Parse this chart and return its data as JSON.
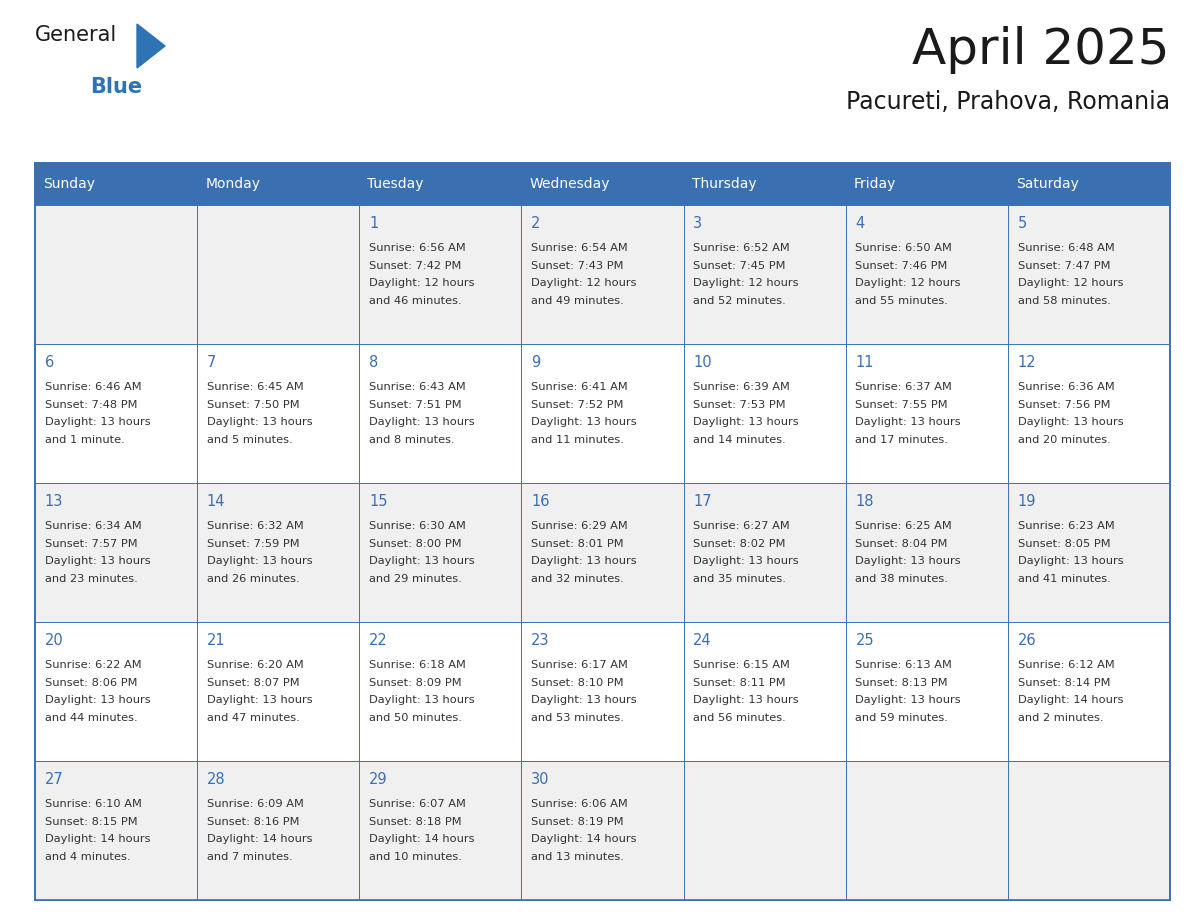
{
  "title": "April 2025",
  "subtitle": "Pacureti, Prahova, Romania",
  "header_bg_color": "#3A70B2",
  "header_text_color": "#FFFFFF",
  "cell_bg_even": "#F0F0F0",
  "cell_bg_odd": "#FFFFFF",
  "border_color": "#3A70B2",
  "day_num_color": "#3A70B2",
  "text_color": "#333333",
  "day_headers": [
    "Sunday",
    "Monday",
    "Tuesday",
    "Wednesday",
    "Thursday",
    "Friday",
    "Saturday"
  ],
  "days_data": [
    {
      "day": 1,
      "col": 2,
      "row": 0,
      "sunrise": "6:56 AM",
      "sunset": "7:42 PM",
      "daylight_h": "12 hours",
      "daylight_m": "46 minutes."
    },
    {
      "day": 2,
      "col": 3,
      "row": 0,
      "sunrise": "6:54 AM",
      "sunset": "7:43 PM",
      "daylight_h": "12 hours",
      "daylight_m": "49 minutes."
    },
    {
      "day": 3,
      "col": 4,
      "row": 0,
      "sunrise": "6:52 AM",
      "sunset": "7:45 PM",
      "daylight_h": "12 hours",
      "daylight_m": "52 minutes."
    },
    {
      "day": 4,
      "col": 5,
      "row": 0,
      "sunrise": "6:50 AM",
      "sunset": "7:46 PM",
      "daylight_h": "12 hours",
      "daylight_m": "55 minutes."
    },
    {
      "day": 5,
      "col": 6,
      "row": 0,
      "sunrise": "6:48 AM",
      "sunset": "7:47 PM",
      "daylight_h": "12 hours",
      "daylight_m": "58 minutes."
    },
    {
      "day": 6,
      "col": 0,
      "row": 1,
      "sunrise": "6:46 AM",
      "sunset": "7:48 PM",
      "daylight_h": "13 hours",
      "daylight_m": "1 minute."
    },
    {
      "day": 7,
      "col": 1,
      "row": 1,
      "sunrise": "6:45 AM",
      "sunset": "7:50 PM",
      "daylight_h": "13 hours",
      "daylight_m": "5 minutes."
    },
    {
      "day": 8,
      "col": 2,
      "row": 1,
      "sunrise": "6:43 AM",
      "sunset": "7:51 PM",
      "daylight_h": "13 hours",
      "daylight_m": "8 minutes."
    },
    {
      "day": 9,
      "col": 3,
      "row": 1,
      "sunrise": "6:41 AM",
      "sunset": "7:52 PM",
      "daylight_h": "13 hours",
      "daylight_m": "11 minutes."
    },
    {
      "day": 10,
      "col": 4,
      "row": 1,
      "sunrise": "6:39 AM",
      "sunset": "7:53 PM",
      "daylight_h": "13 hours",
      "daylight_m": "14 minutes."
    },
    {
      "day": 11,
      "col": 5,
      "row": 1,
      "sunrise": "6:37 AM",
      "sunset": "7:55 PM",
      "daylight_h": "13 hours",
      "daylight_m": "17 minutes."
    },
    {
      "day": 12,
      "col": 6,
      "row": 1,
      "sunrise": "6:36 AM",
      "sunset": "7:56 PM",
      "daylight_h": "13 hours",
      "daylight_m": "20 minutes."
    },
    {
      "day": 13,
      "col": 0,
      "row": 2,
      "sunrise": "6:34 AM",
      "sunset": "7:57 PM",
      "daylight_h": "13 hours",
      "daylight_m": "23 minutes."
    },
    {
      "day": 14,
      "col": 1,
      "row": 2,
      "sunrise": "6:32 AM",
      "sunset": "7:59 PM",
      "daylight_h": "13 hours",
      "daylight_m": "26 minutes."
    },
    {
      "day": 15,
      "col": 2,
      "row": 2,
      "sunrise": "6:30 AM",
      "sunset": "8:00 PM",
      "daylight_h": "13 hours",
      "daylight_m": "29 minutes."
    },
    {
      "day": 16,
      "col": 3,
      "row": 2,
      "sunrise": "6:29 AM",
      "sunset": "8:01 PM",
      "daylight_h": "13 hours",
      "daylight_m": "32 minutes."
    },
    {
      "day": 17,
      "col": 4,
      "row": 2,
      "sunrise": "6:27 AM",
      "sunset": "8:02 PM",
      "daylight_h": "13 hours",
      "daylight_m": "35 minutes."
    },
    {
      "day": 18,
      "col": 5,
      "row": 2,
      "sunrise": "6:25 AM",
      "sunset": "8:04 PM",
      "daylight_h": "13 hours",
      "daylight_m": "38 minutes."
    },
    {
      "day": 19,
      "col": 6,
      "row": 2,
      "sunrise": "6:23 AM",
      "sunset": "8:05 PM",
      "daylight_h": "13 hours",
      "daylight_m": "41 minutes."
    },
    {
      "day": 20,
      "col": 0,
      "row": 3,
      "sunrise": "6:22 AM",
      "sunset": "8:06 PM",
      "daylight_h": "13 hours",
      "daylight_m": "44 minutes."
    },
    {
      "day": 21,
      "col": 1,
      "row": 3,
      "sunrise": "6:20 AM",
      "sunset": "8:07 PM",
      "daylight_h": "13 hours",
      "daylight_m": "47 minutes."
    },
    {
      "day": 22,
      "col": 2,
      "row": 3,
      "sunrise": "6:18 AM",
      "sunset": "8:09 PM",
      "daylight_h": "13 hours",
      "daylight_m": "50 minutes."
    },
    {
      "day": 23,
      "col": 3,
      "row": 3,
      "sunrise": "6:17 AM",
      "sunset": "8:10 PM",
      "daylight_h": "13 hours",
      "daylight_m": "53 minutes."
    },
    {
      "day": 24,
      "col": 4,
      "row": 3,
      "sunrise": "6:15 AM",
      "sunset": "8:11 PM",
      "daylight_h": "13 hours",
      "daylight_m": "56 minutes."
    },
    {
      "day": 25,
      "col": 5,
      "row": 3,
      "sunrise": "6:13 AM",
      "sunset": "8:13 PM",
      "daylight_h": "13 hours",
      "daylight_m": "59 minutes."
    },
    {
      "day": 26,
      "col": 6,
      "row": 3,
      "sunrise": "6:12 AM",
      "sunset": "8:14 PM",
      "daylight_h": "14 hours",
      "daylight_m": "2 minutes."
    },
    {
      "day": 27,
      "col": 0,
      "row": 4,
      "sunrise": "6:10 AM",
      "sunset": "8:15 PM",
      "daylight_h": "14 hours",
      "daylight_m": "4 minutes."
    },
    {
      "day": 28,
      "col": 1,
      "row": 4,
      "sunrise": "6:09 AM",
      "sunset": "8:16 PM",
      "daylight_h": "14 hours",
      "daylight_m": "7 minutes."
    },
    {
      "day": 29,
      "col": 2,
      "row": 4,
      "sunrise": "6:07 AM",
      "sunset": "8:18 PM",
      "daylight_h": "14 hours",
      "daylight_m": "10 minutes."
    },
    {
      "day": 30,
      "col": 3,
      "row": 4,
      "sunrise": "6:06 AM",
      "sunset": "8:19 PM",
      "daylight_h": "14 hours",
      "daylight_m": "13 minutes."
    }
  ],
  "num_rows": 5,
  "num_cols": 7,
  "logo_text_general": "General",
  "logo_text_blue": "Blue",
  "logo_general_color": "#1a1a1a",
  "logo_blue_color": "#2E74B5",
  "logo_triangle_color": "#2E74B5"
}
